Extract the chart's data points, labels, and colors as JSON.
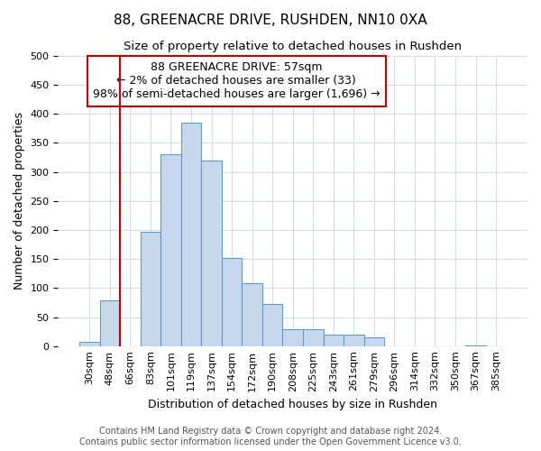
{
  "title": "88, GREENACRE DRIVE, RUSHDEN, NN10 0XA",
  "subtitle": "Size of property relative to detached houses in Rushden",
  "xlabel": "Distribution of detached houses by size in Rushden",
  "ylabel": "Number of detached properties",
  "bar_categories": [
    "30sqm",
    "48sqm",
    "66sqm",
    "83sqm",
    "101sqm",
    "119sqm",
    "137sqm",
    "154sqm",
    "172sqm",
    "190sqm",
    "208sqm",
    "225sqm",
    "243sqm",
    "261sqm",
    "279sqm",
    "296sqm",
    "314sqm",
    "332sqm",
    "350sqm",
    "367sqm",
    "385sqm"
  ],
  "bar_values": [
    8,
    78,
    0,
    197,
    330,
    385,
    320,
    152,
    108,
    72,
    29,
    29,
    20,
    20,
    15,
    0,
    0,
    0,
    0,
    1,
    0
  ],
  "bar_color": "#c8d8ec",
  "bar_edge_color": "#5b9bd5",
  "vline_x": 1.5,
  "vline_color": "#cc0000",
  "annotation_text": "88 GREENACRE DRIVE: 57sqm\n← 2% of detached houses are smaller (33)\n98% of semi-detached houses are larger (1,696) →",
  "annotation_box_color": "#ffffff",
  "annotation_box_edge_color": "#cc0000",
  "ylim": [
    0,
    500
  ],
  "yticks": [
    0,
    50,
    100,
    150,
    200,
    250,
    300,
    350,
    400,
    450,
    500
  ],
  "footer_line1": "Contains HM Land Registry data © Crown copyright and database right 2024.",
  "footer_line2": "Contains public sector information licensed under the Open Government Licence v3.0.",
  "background_color": "#ffffff",
  "plot_background_color": "#ffffff",
  "grid_color": "#d0dce8",
  "title_fontsize": 11,
  "subtitle_fontsize": 9.5,
  "axis_label_fontsize": 9,
  "tick_fontsize": 8,
  "annotation_fontsize": 9,
  "footer_fontsize": 7
}
